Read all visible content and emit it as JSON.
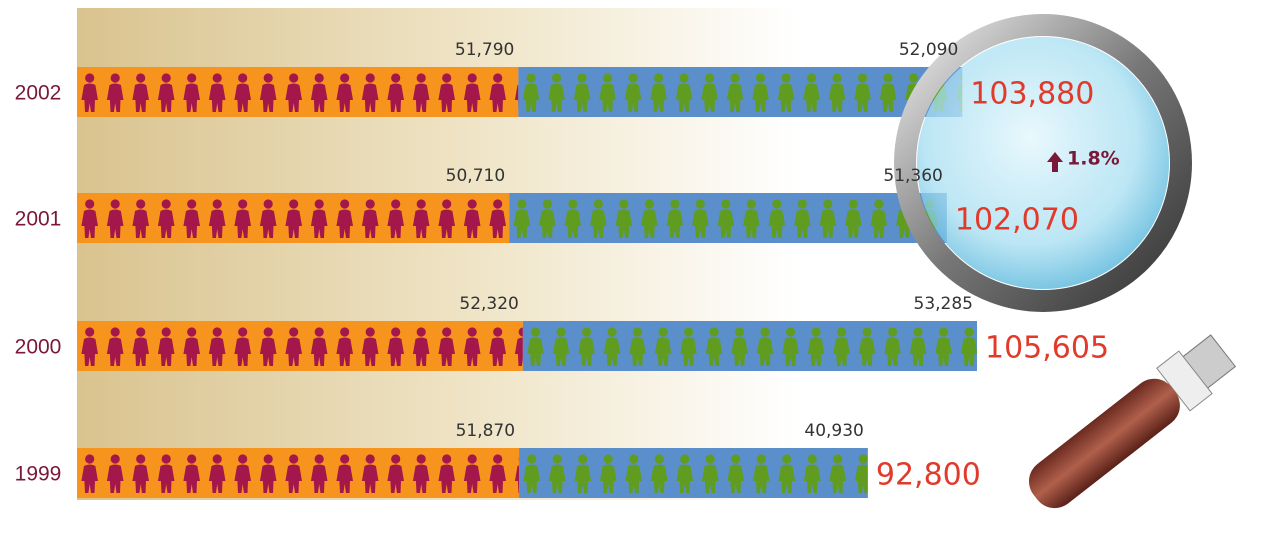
{
  "chart_data": {
    "type": "stacked-bar-horizontal",
    "categories": [
      "2002",
      "2001",
      "2000",
      "1999"
    ],
    "series": [
      {
        "color": "#f7941d",
        "icon_color": "#a3174a",
        "values": [
          51790,
          50710,
          52320,
          51870
        ],
        "value_labels": [
          "51,790",
          "50,710",
          "52,320",
          "51,870"
        ]
      },
      {
        "color": "#5b8fcc",
        "icon_color": "#5f9c1f",
        "values": [
          52090,
          51360,
          53285,
          40930
        ],
        "value_labels": [
          "52,090",
          "51,360",
          "53,285",
          "40,930"
        ]
      }
    ],
    "totals": [
      {
        "value": 103880,
        "label": "103,880"
      },
      {
        "value": 102070,
        "label": "102,070"
      },
      {
        "value": 105605,
        "label": "105,605"
      },
      {
        "value": 92800,
        "label": "92,800"
      }
    ],
    "annotation": "1.8%"
  }
}
